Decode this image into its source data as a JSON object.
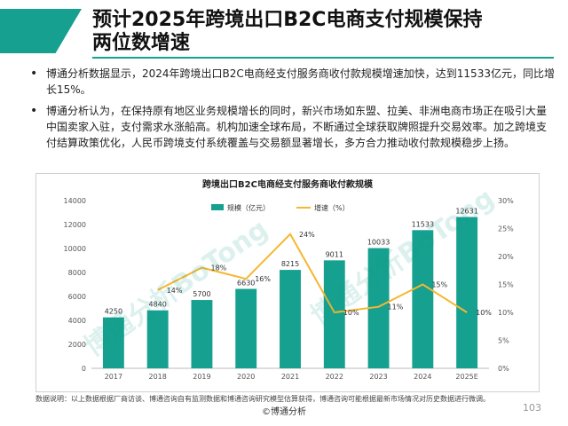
{
  "page": {
    "title_line1": "预计2025年跨境出口B2C电商支付规模保持",
    "title_line2": "两位数增速",
    "bullets": [
      "博通分析数据显示，2024年跨境出口B2C电商经支付服务商收付款规模增速加快，达到11533亿元，同比增长15%。",
      "博通分析认为，在保持原有地区业务规模增长的同时，新兴市场如东盟、拉美、非洲电商市场正在吸引大量中国卖家入驻，支付需求水涨船高。机构加速全球布局，不断通过全球获取牌照提升交易效率。加之跨境支付结算政策优化，人民币跨境支付系统覆盖与交易额显著增长，多方合力推动收付款规模稳步上扬。"
    ],
    "watermark": "博通分析BoTong",
    "footnote": "数据说明：以上数据根据厂商访谈、博通咨询自有监测数据和博通咨询研究模型估算获得，博通咨询可能根据最新市场情况对历史数据进行微调。",
    "copyright": "©博通分析",
    "page_number": "103"
  },
  "colors": {
    "accent": "#16a08f",
    "bar": "#16a08f",
    "line": "#f5b731"
  },
  "chart_data": {
    "type": "bar",
    "title": "跨境出口B2C电商经支付服务商收付款规模",
    "categories": [
      "2017",
      "2018",
      "2019",
      "2020",
      "2021",
      "2022",
      "2023",
      "2024",
      "2025E"
    ],
    "series": [
      {
        "name": "规模（亿元）",
        "kind": "bar",
        "axis": "left",
        "values": [
          4250,
          4840,
          5700,
          6630,
          8215,
          9011,
          10033,
          11533,
          12631
        ],
        "labels": [
          "4250",
          "4840",
          "5700",
          "6630",
          "8215",
          "9011",
          "10033",
          "11533",
          "12631"
        ]
      },
      {
        "name": "增速（%）",
        "kind": "line",
        "axis": "right",
        "values": [
          null,
          14,
          18,
          16,
          24,
          10,
          11,
          15,
          10
        ],
        "labels": [
          "",
          "14%",
          "18%",
          "16%",
          "24%",
          "10%",
          "11%",
          "15%",
          "10%"
        ]
      }
    ],
    "left_axis": {
      "min": 0,
      "max": 14000,
      "ticks": [
        0,
        2000,
        4000,
        6000,
        8000,
        10000,
        12000,
        14000
      ],
      "tick_labels": [
        "0",
        "2000",
        "4000",
        "6000",
        "8000",
        "10000",
        "12000",
        "14000"
      ]
    },
    "right_axis": {
      "min": 0,
      "max": 30,
      "ticks": [
        0,
        5,
        10,
        15,
        20,
        25,
        30
      ],
      "tick_labels": [
        "0%",
        "5%",
        "10%",
        "15%",
        "20%",
        "25%",
        "30%"
      ]
    },
    "legend_position": "top-center",
    "grid": false
  }
}
